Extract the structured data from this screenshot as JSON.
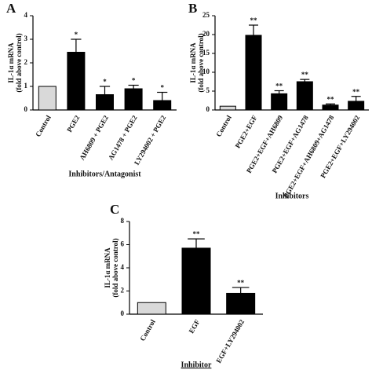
{
  "chart_data": [
    {
      "type": "bar",
      "panel": "A",
      "ylabel": [
        "IL-1α mRNA",
        "(fold above control)"
      ],
      "xlabel": "Inhibitors/Antagonist",
      "categories": [
        "Control",
        "PGE2",
        "AH6809 + PGE2",
        "AG1478 + PGE2",
        "LY294002 + PGE2"
      ],
      "values": [
        1,
        2.45,
        0.65,
        0.9,
        0.4
      ],
      "errors": [
        0,
        0.55,
        0.35,
        0.15,
        0.35
      ],
      "colors": [
        "#d9d9d9",
        "#000000",
        "#000000",
        "#000000",
        "#000000"
      ],
      "significance": [
        null,
        "*",
        "*",
        "*",
        "*"
      ],
      "ylim": [
        0,
        4
      ],
      "yticks": [
        0,
        1,
        2,
        3,
        4
      ]
    },
    {
      "type": "bar",
      "panel": "B",
      "ylabel": [
        "IL-1α mRNA",
        "(fold above control)"
      ],
      "xlabel": "Inhibitors",
      "categories": [
        "Control",
        "PGE2+EGF",
        "PGE2+EGF+AH6809",
        "PGE2+EGF+AG1478",
        "PGE2+EGF+AH6809+AG1478",
        "PGE2+EGF+LY294002"
      ],
      "values": [
        1,
        19.8,
        4.3,
        7.5,
        1.3,
        2.3
      ],
      "errors": [
        0,
        2.7,
        0.8,
        0.6,
        0.3,
        1.3
      ],
      "colors": [
        "#d9d9d9",
        "#000000",
        "#000000",
        "#000000",
        "#000000",
        "#000000"
      ],
      "significance": [
        null,
        "**",
        "**",
        "**",
        "**",
        "**"
      ],
      "ylim": [
        0,
        25
      ],
      "yticks": [
        0,
        5,
        10,
        15,
        20,
        25
      ]
    },
    {
      "type": "bar",
      "panel": "C",
      "ylabel": [
        "IL-1α mRNA",
        "(fold above control)"
      ],
      "xlabel": "Inhibitor",
      "categories": [
        "Control",
        "EGF",
        "EGF+LY294002"
      ],
      "values": [
        1,
        5.7,
        1.8
      ],
      "errors": [
        0,
        0.8,
        0.5
      ],
      "colors": [
        "#d9d9d9",
        "#000000",
        "#000000"
      ],
      "significance": [
        null,
        "**",
        "**"
      ],
      "ylim": [
        0,
        8
      ],
      "yticks": [
        0,
        2,
        4,
        6,
        8
      ]
    }
  ]
}
